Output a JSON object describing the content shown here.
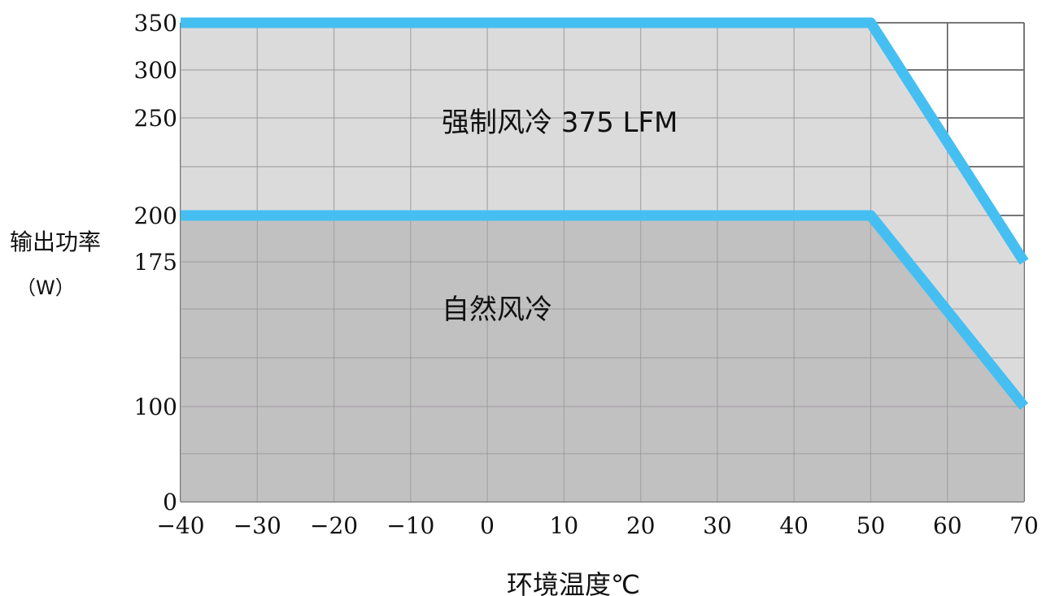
{
  "chart_data": {
    "type": "area",
    "title": "",
    "xlabel": "环境温度℃",
    "ylabel": "输出功率",
    "ylabel_unit": "（W）",
    "xlim": [
      -40,
      70
    ],
    "ylim": [
      0,
      350
    ],
    "x_ticks": [
      -40,
      -30,
      -20,
      -10,
      0,
      10,
      20,
      30,
      40,
      50,
      60,
      70
    ],
    "x_tick_labels": [
      "−40",
      "−30",
      "−20",
      "−10",
      "0",
      "10",
      "20",
      "30",
      "40",
      "50",
      "60",
      "70"
    ],
    "y_ticks": [
      0,
      100,
      175,
      200,
      250,
      300,
      350
    ],
    "y_tick_labels": [
      "0",
      "100",
      "175",
      "200",
      "250",
      "300",
      "350"
    ],
    "grid": true,
    "series": [
      {
        "name": "强制风冷 375 LFM",
        "x": [
          -40,
          50,
          70
        ],
        "y": [
          350,
          350,
          175
        ]
      },
      {
        "name": "自然风冷",
        "x": [
          -40,
          50,
          70
        ],
        "y": [
          200,
          200,
          100
        ]
      }
    ],
    "colors": {
      "line": "#45bff1",
      "forced_fill": "#d9d8d9",
      "natural_fill": "#bdbcbd",
      "grid": "#8f8f8f",
      "grid_outside": "#222222"
    }
  }
}
